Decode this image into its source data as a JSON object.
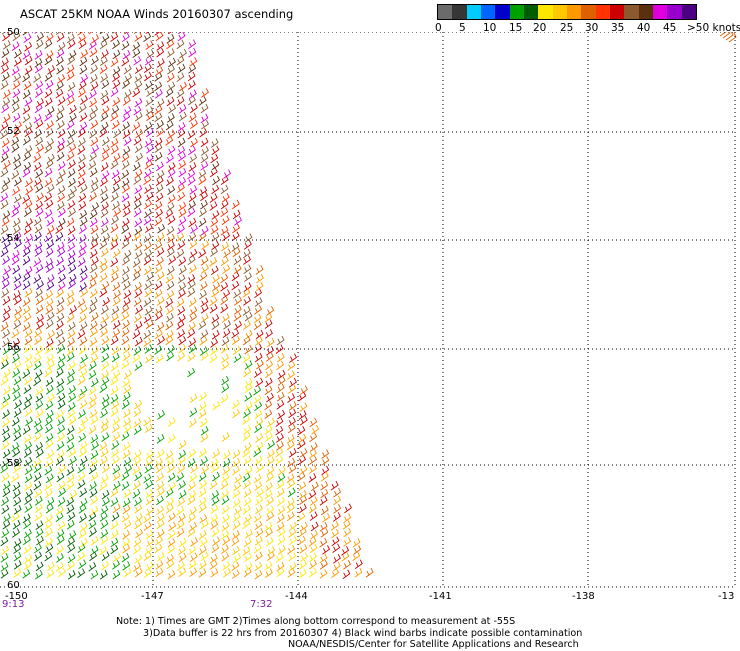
{
  "title": "ASCAT 25KM NOAA Winds 20160307 ascending",
  "legend": {
    "labels": [
      "0",
      "5",
      "10",
      "15",
      "20",
      "25",
      "30",
      "35",
      "40",
      "45",
      ">50 knots"
    ],
    "colors": [
      "#6b6b6b",
      "#363636",
      "#00ccff",
      "#0066ff",
      "#0000cc",
      "#00a000",
      "#005c00",
      "#ffe600",
      "#ffc800",
      "#ff9900",
      "#e06000",
      "#ff3300",
      "#cc0000",
      "#8a5a2e",
      "#5a3010",
      "#dd00dd",
      "#9900cc",
      "#4b0082"
    ]
  },
  "axes": {
    "x_labels": [
      "-150",
      "-147",
      "-144",
      "-141",
      "-138",
      "-13"
    ],
    "lat_labels": [
      "50",
      "52",
      "54",
      "56",
      "58",
      "60"
    ],
    "x_range": [
      -150,
      -135
    ],
    "lat_range": [
      50,
      60
    ]
  },
  "times": [
    "9:13",
    "7:32"
  ],
  "note": {
    "line1": "Note: 1) Times are GMT 2)Times along bottom correspond to measurement at -55S",
    "line2": "3)Data buffer is 22 hrs from 20160307 4) Black wind barbs indicate possible contamination",
    "line3": "NOAA/NESDIS/Center for Satellite Applications and Research"
  }
}
